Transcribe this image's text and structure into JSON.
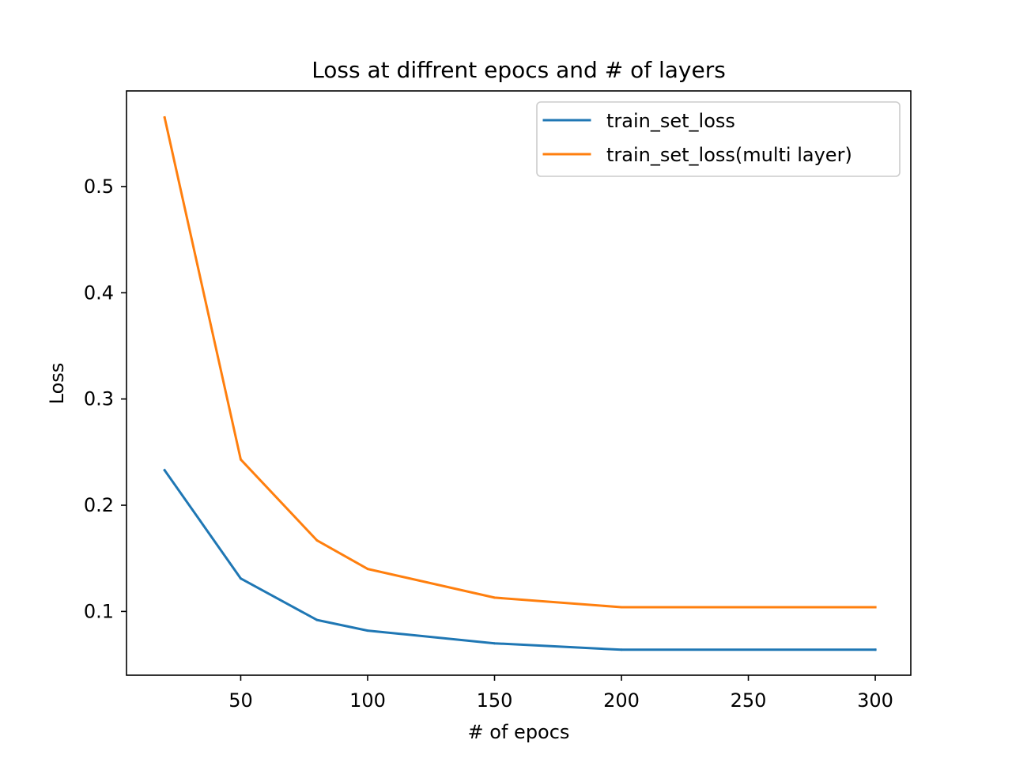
{
  "chart_data": {
    "type": "line",
    "title": "Loss at diffrent epocs and # of layers",
    "xlabel": "# of epocs",
    "ylabel": "Loss",
    "xlim": [
      5,
      314
    ],
    "ylim": [
      0.04,
      0.59
    ],
    "xticks": [
      50,
      100,
      150,
      200,
      250,
      300
    ],
    "xtick_labels": [
      "50",
      "100",
      "150",
      "200",
      "250",
      "300"
    ],
    "yticks": [
      0.1,
      0.2,
      0.3,
      0.4,
      0.5
    ],
    "ytick_labels": [
      "0.1",
      "0.2",
      "0.3",
      "0.4",
      "0.5"
    ],
    "x": [
      20,
      50,
      80,
      100,
      150,
      200,
      300
    ],
    "series": [
      {
        "name": "train_set_loss",
        "color": "#1f77b4",
        "values": [
          0.233,
          0.131,
          0.092,
          0.082,
          0.07,
          0.064,
          0.064
        ]
      },
      {
        "name": "train_set_loss(multi layer)",
        "color": "#ff7f0e",
        "values": [
          0.565,
          0.243,
          0.167,
          0.14,
          0.113,
          0.104,
          0.104
        ]
      }
    ],
    "grid": false,
    "legend_position": "top-right"
  }
}
